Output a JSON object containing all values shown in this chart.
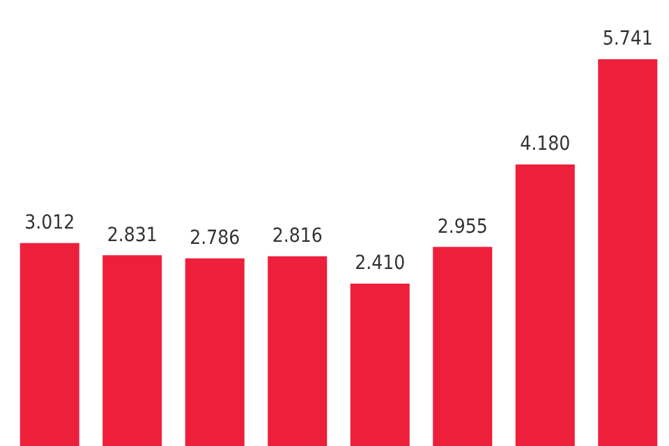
{
  "chart_data": {
    "type": "bar",
    "categories": [
      null,
      null,
      null,
      null,
      null,
      null,
      null,
      null
    ],
    "values": [
      3.012,
      2.831,
      2.786,
      2.816,
      2.41,
      2.955,
      4.18,
      5.741
    ],
    "value_labels": [
      "3.012",
      "2.831",
      "2.786",
      "2.816",
      "2.410",
      "2.955",
      "4.180",
      "5.741"
    ],
    "color": "#ee1f3b"
  }
}
